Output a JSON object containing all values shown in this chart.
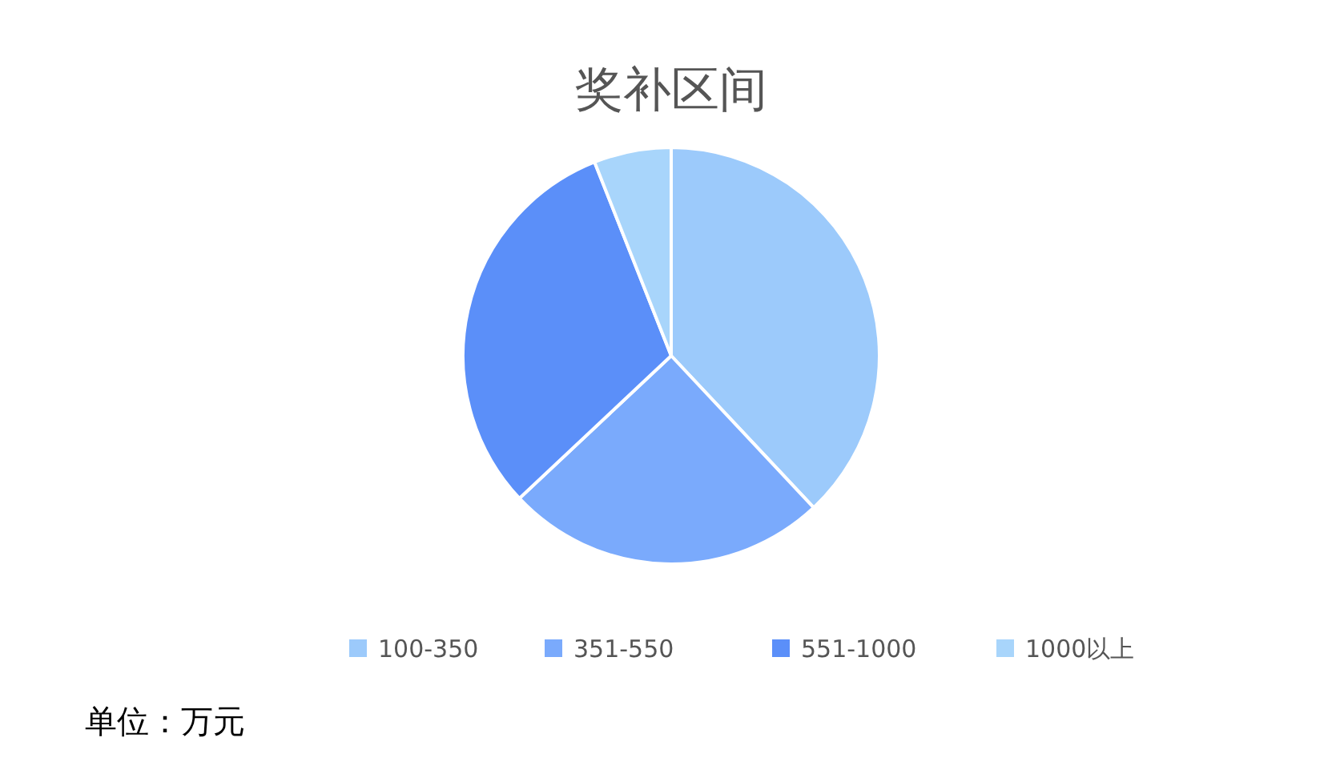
{
  "chart_data": {
    "type": "pie",
    "title": "奖补区间",
    "categories": [
      "100-350",
      "351-550",
      "551-1000",
      "1000以上"
    ],
    "values": [
      38,
      25,
      31,
      6
    ],
    "colors": [
      "#9ccafb",
      "#7aaafc",
      "#5b8ff9",
      "#a8d5fb"
    ],
    "legend": "bottom",
    "annotations": [
      "单位：万元"
    ]
  }
}
